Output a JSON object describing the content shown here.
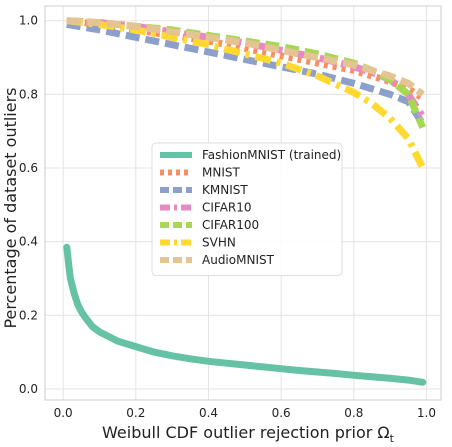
{
  "chart_data": {
    "type": "line",
    "title": "",
    "xlabel": "Weibull CDF outlier rejection prior Ω",
    "xlabel_subscript": "t",
    "ylabel": "Percentage of dataset outliers",
    "xlim": [
      -0.05,
      1.04
    ],
    "ylim": [
      -0.03,
      1.04
    ],
    "xticks": [
      0.0,
      0.2,
      0.4,
      0.6,
      0.8,
      1.0
    ],
    "yticks": [
      0.0,
      0.2,
      0.4,
      0.6,
      0.8,
      1.0
    ],
    "xtick_labels": [
      "0.0",
      "0.2",
      "0.4",
      "0.6",
      "0.8",
      "1.0"
    ],
    "ytick_labels": [
      "0.0",
      "0.2",
      "0.4",
      "0.6",
      "0.8",
      "1.0"
    ],
    "grid": true,
    "legend_position": "center",
    "series": [
      {
        "name": "FashionMNIST (trained)",
        "color": "#66c2a5",
        "style": "solid",
        "x": [
          0.01,
          0.015,
          0.02,
          0.03,
          0.04,
          0.05,
          0.06,
          0.08,
          0.1,
          0.15,
          0.2,
          0.25,
          0.3,
          0.35,
          0.4,
          0.45,
          0.5,
          0.55,
          0.6,
          0.65,
          0.7,
          0.75,
          0.8,
          0.85,
          0.9,
          0.95,
          0.99
        ],
        "y": [
          0.385,
          0.34,
          0.3,
          0.26,
          0.23,
          0.21,
          0.195,
          0.17,
          0.155,
          0.13,
          0.115,
          0.1,
          0.09,
          0.082,
          0.075,
          0.07,
          0.065,
          0.06,
          0.055,
          0.05,
          0.046,
          0.042,
          0.037,
          0.033,
          0.029,
          0.024,
          0.018
        ]
      },
      {
        "name": "MNIST",
        "color": "#fc8d62",
        "style": "dotted",
        "x": [
          0.01,
          0.1,
          0.2,
          0.3,
          0.4,
          0.5,
          0.6,
          0.7,
          0.8,
          0.85,
          0.9,
          0.95,
          0.99
        ],
        "y": [
          1.0,
          0.99,
          0.975,
          0.96,
          0.945,
          0.925,
          0.905,
          0.885,
          0.865,
          0.85,
          0.835,
          0.815,
          0.79
        ]
      },
      {
        "name": "KMNIST",
        "color": "#8da0cb",
        "style": "dashed",
        "x": [
          0.01,
          0.1,
          0.2,
          0.3,
          0.4,
          0.5,
          0.6,
          0.7,
          0.8,
          0.85,
          0.9,
          0.95,
          0.99
        ],
        "y": [
          0.99,
          0.975,
          0.955,
          0.935,
          0.915,
          0.895,
          0.875,
          0.855,
          0.83,
          0.815,
          0.8,
          0.78,
          0.72
        ]
      },
      {
        "name": "CIFAR10",
        "color": "#e78ac3",
        "style": "dashdot",
        "x": [
          0.01,
          0.1,
          0.2,
          0.3,
          0.4,
          0.5,
          0.6,
          0.7,
          0.8,
          0.85,
          0.9,
          0.95,
          0.99
        ],
        "y": [
          1.0,
          0.995,
          0.985,
          0.97,
          0.955,
          0.94,
          0.92,
          0.9,
          0.875,
          0.86,
          0.84,
          0.8,
          0.74
        ]
      },
      {
        "name": "CIFAR100",
        "color": "#a6d854",
        "style": "dashed",
        "x": [
          0.01,
          0.1,
          0.2,
          0.3,
          0.4,
          0.5,
          0.6,
          0.7,
          0.8,
          0.85,
          0.9,
          0.95,
          0.99
        ],
        "y": [
          1.0,
          0.995,
          0.985,
          0.975,
          0.96,
          0.945,
          0.93,
          0.91,
          0.885,
          0.865,
          0.84,
          0.8,
          0.71
        ]
      },
      {
        "name": "SVHN",
        "color": "#ffd92f",
        "style": "dashdot",
        "x": [
          0.01,
          0.1,
          0.2,
          0.3,
          0.4,
          0.5,
          0.6,
          0.7,
          0.8,
          0.85,
          0.9,
          0.95,
          0.99
        ],
        "y": [
          1.0,
          0.99,
          0.975,
          0.955,
          0.935,
          0.91,
          0.885,
          0.85,
          0.805,
          0.775,
          0.735,
          0.68,
          0.6
        ]
      },
      {
        "name": "AudioMNIST",
        "color": "#e5c494",
        "style": "dashed",
        "x": [
          0.01,
          0.1,
          0.2,
          0.3,
          0.4,
          0.5,
          0.6,
          0.7,
          0.8,
          0.85,
          0.9,
          0.95,
          0.99
        ],
        "y": [
          1.0,
          0.995,
          0.985,
          0.97,
          0.955,
          0.94,
          0.92,
          0.9,
          0.88,
          0.865,
          0.85,
          0.83,
          0.8
        ]
      }
    ]
  }
}
